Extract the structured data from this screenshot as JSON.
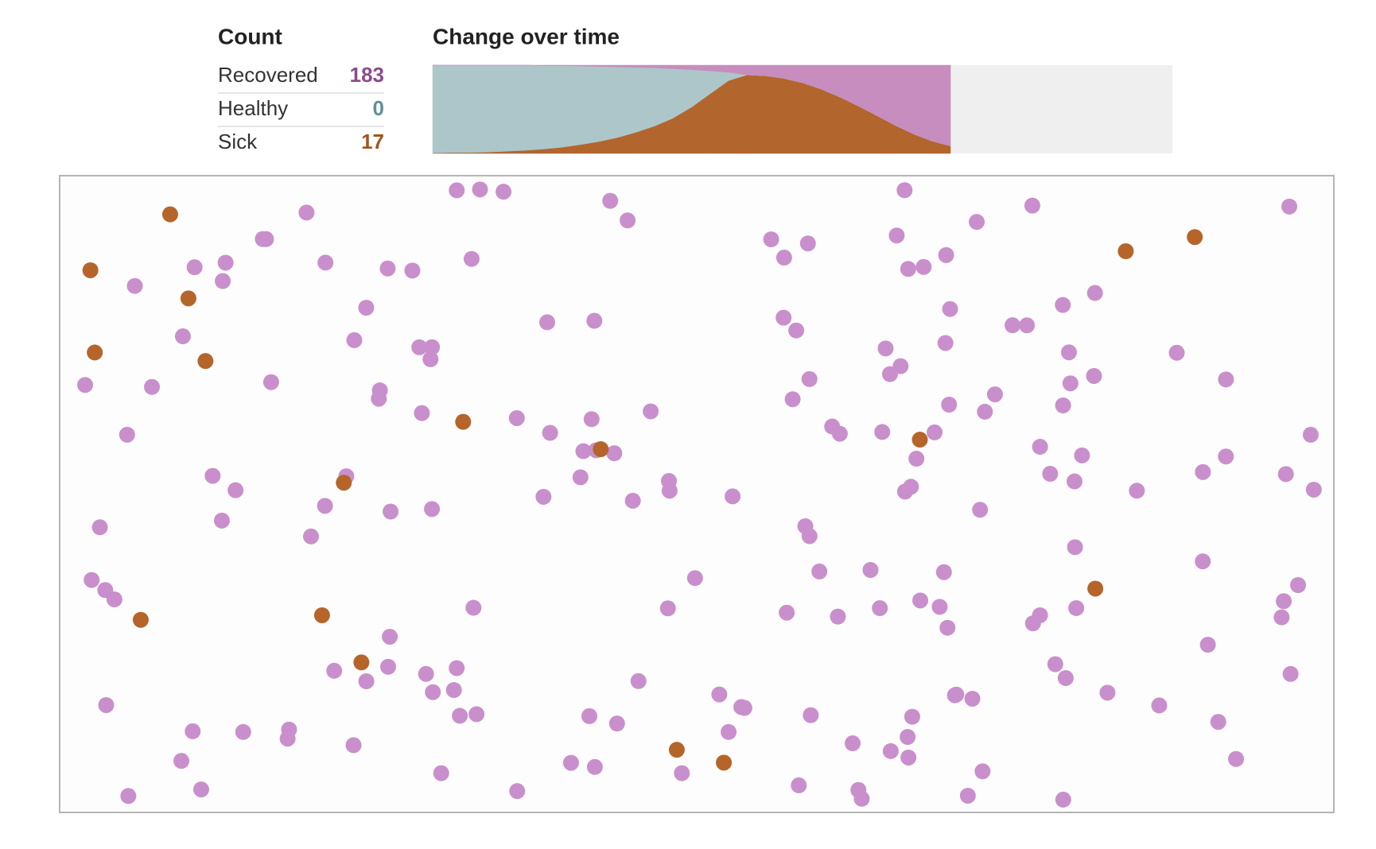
{
  "counts": {
    "title": "Count",
    "rows": [
      {
        "label": "Recovered",
        "value": 183,
        "color": "#8d4a8b"
      },
      {
        "label": "Healthy",
        "value": 0,
        "color": "#5f8f99"
      },
      {
        "label": "Sick",
        "value": 17,
        "color": "#a4541b"
      }
    ]
  },
  "chart_data": {
    "type": "area",
    "title": "Change over time",
    "x": [
      0,
      1,
      2,
      3,
      4,
      5,
      6,
      7,
      8,
      9,
      10,
      11,
      12,
      13,
      14,
      15,
      16,
      17,
      18,
      19,
      20,
      21,
      22,
      23,
      24,
      25,
      26,
      27,
      28
    ],
    "xlim": [
      0,
      40
    ],
    "ylim": [
      0,
      200
    ],
    "series": [
      {
        "name": "Sick",
        "color": "#b3652e",
        "values": [
          1,
          2,
          2,
          3,
          5,
          7,
          10,
          14,
          20,
          27,
          36,
          48,
          62,
          80,
          105,
          135,
          165,
          178,
          176,
          170,
          160,
          146,
          128,
          108,
          86,
          64,
          44,
          28,
          17
        ]
      },
      {
        "name": "Healthy",
        "color": "#adc6c9",
        "values": [
          199,
          198,
          198,
          197,
          195,
          193,
          189,
          185,
          178,
          170,
          160,
          147,
          132,
          112,
          85,
          52,
          19,
          0,
          0,
          0,
          0,
          0,
          0,
          0,
          0,
          0,
          0,
          0,
          0
        ]
      },
      {
        "name": "Recovered",
        "color": "#c68dbe",
        "values": [
          0,
          0,
          0,
          0,
          0,
          0,
          1,
          1,
          2,
          3,
          4,
          5,
          6,
          8,
          10,
          13,
          16,
          22,
          24,
          30,
          40,
          54,
          72,
          92,
          114,
          136,
          156,
          172,
          183
        ]
      }
    ],
    "background": "#efefef"
  },
  "dot_colors": {
    "Recovered": "#c98fcc",
    "Healthy": "#adc6c9",
    "Sick": "#b5652a"
  }
}
